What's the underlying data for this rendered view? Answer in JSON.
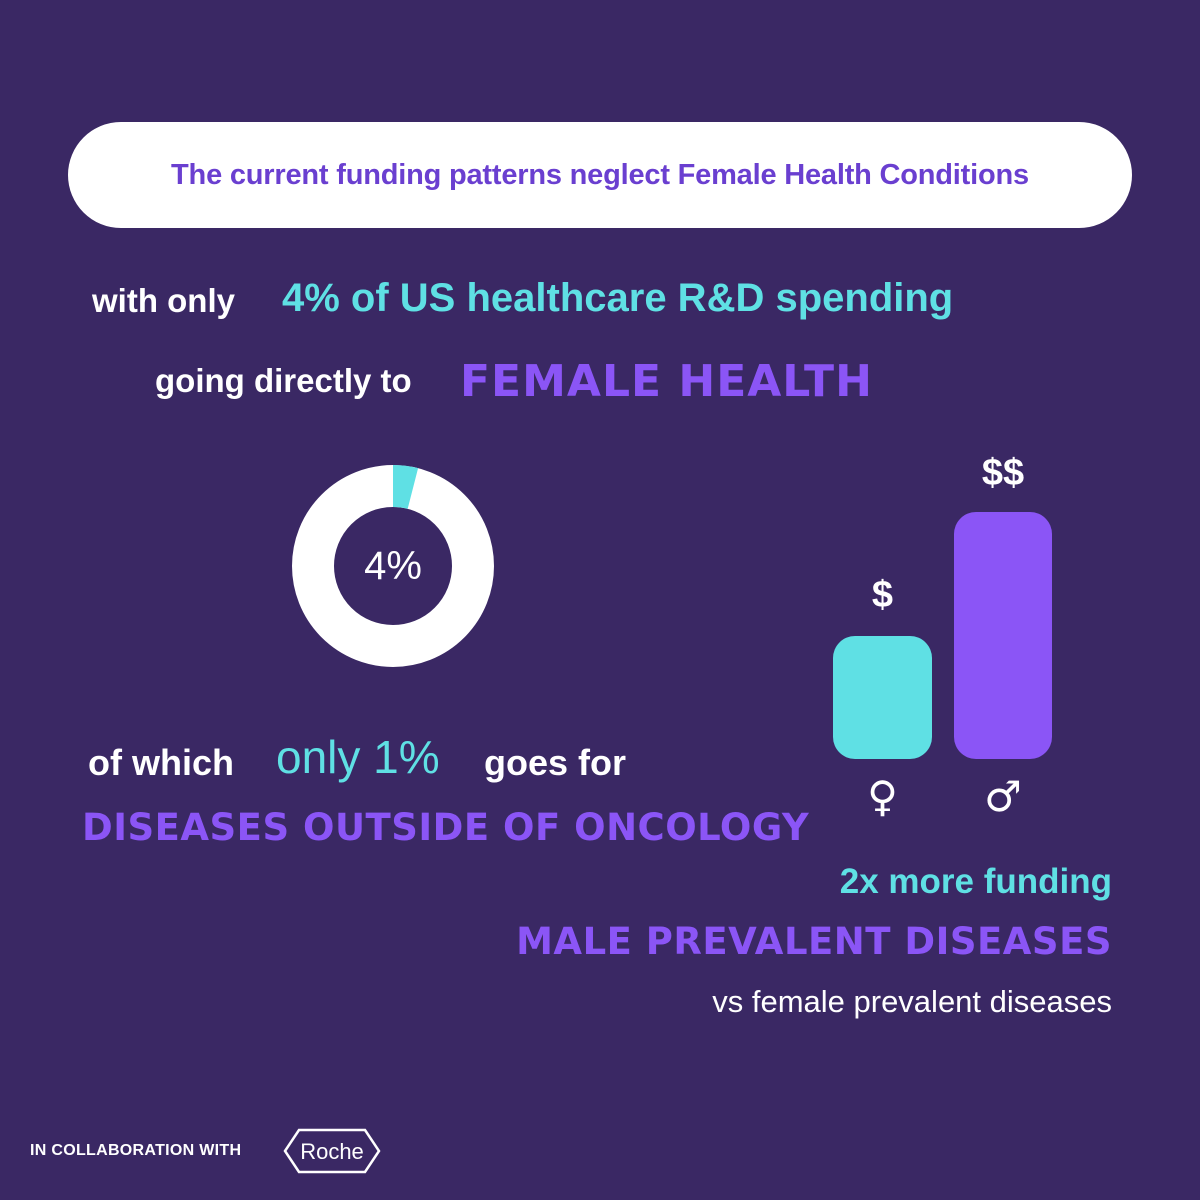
{
  "banner": {
    "title": "The current funding patterns neglect Female Health Conditions"
  },
  "line1": {
    "lead": "with only",
    "highlight": "4% of US healthcare R&D spending"
  },
  "line2": {
    "lead": "going directly to",
    "highlight": "Female Health"
  },
  "donut": {
    "label": "4%",
    "share": 0.04,
    "colors": {
      "share": "#5fe0e4",
      "rest": "#ffffff"
    }
  },
  "line3": {
    "lead": "of which",
    "highlight": "only 1%",
    "tail": "goes for"
  },
  "line4": {
    "highlight": "Diseases outside of oncology"
  },
  "bars": {
    "female": {
      "label": "$",
      "symbol": "♀",
      "relative": 0.5,
      "color": "#5fe0e4"
    },
    "male": {
      "label": "$$",
      "symbol": "♂",
      "relative": 1.0,
      "color": "#8b55f6"
    }
  },
  "line5": {
    "text": "2x more funding"
  },
  "line6": {
    "text": "Male prevalent diseases"
  },
  "line7": {
    "text": "vs female prevalent diseases"
  },
  "footer": {
    "collab": "IN COLLABORATION WITH",
    "partner": "Roche"
  },
  "colors": {
    "background": "#3a2864",
    "cyan": "#5fe0e4",
    "purple": "#8b55f6",
    "banner_text": "#6a3fd0"
  }
}
